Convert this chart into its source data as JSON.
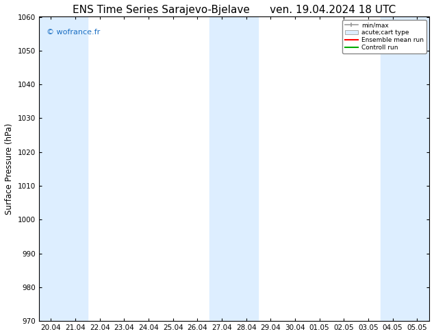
{
  "title_left": "ENS Time Series Sarajevo-Bjelave",
  "title_right": "ven. 19.04.2024 18 UTC",
  "ylabel": "Surface Pressure (hPa)",
  "ylim": [
    970,
    1060
  ],
  "yticks": [
    970,
    980,
    990,
    1000,
    1010,
    1020,
    1030,
    1040,
    1050,
    1060
  ],
  "x_tick_labels": [
    "20.04",
    "21.04",
    "22.04",
    "23.04",
    "24.04",
    "25.04",
    "26.04",
    "27.04",
    "28.04",
    "29.04",
    "30.04",
    "01.05",
    "02.05",
    "03.05",
    "04.05",
    "05.05"
  ],
  "watermark": "© wofrance.fr",
  "watermark_color": "#1a6ec2",
  "bg_color": "#ffffff",
  "plot_bg_color": "#ffffff",
  "shaded_band_color": "#ddeeff",
  "shaded_intervals": [
    [
      0,
      2
    ],
    [
      7,
      9
    ],
    [
      14,
      16
    ]
  ],
  "legend_items": [
    {
      "label": "min/max",
      "type": "errorbar",
      "color": "#aaaaaa"
    },
    {
      "label": "acute;cart type",
      "type": "box",
      "color": "#cce0f0"
    },
    {
      "label": "Ensemble mean run",
      "type": "line",
      "color": "#ff0000"
    },
    {
      "label": "Controll run",
      "type": "line",
      "color": "#00aa00"
    }
  ],
  "title_fontsize": 11,
  "tick_fontsize": 7.5,
  "ylabel_fontsize": 8.5,
  "watermark_fontsize": 8
}
